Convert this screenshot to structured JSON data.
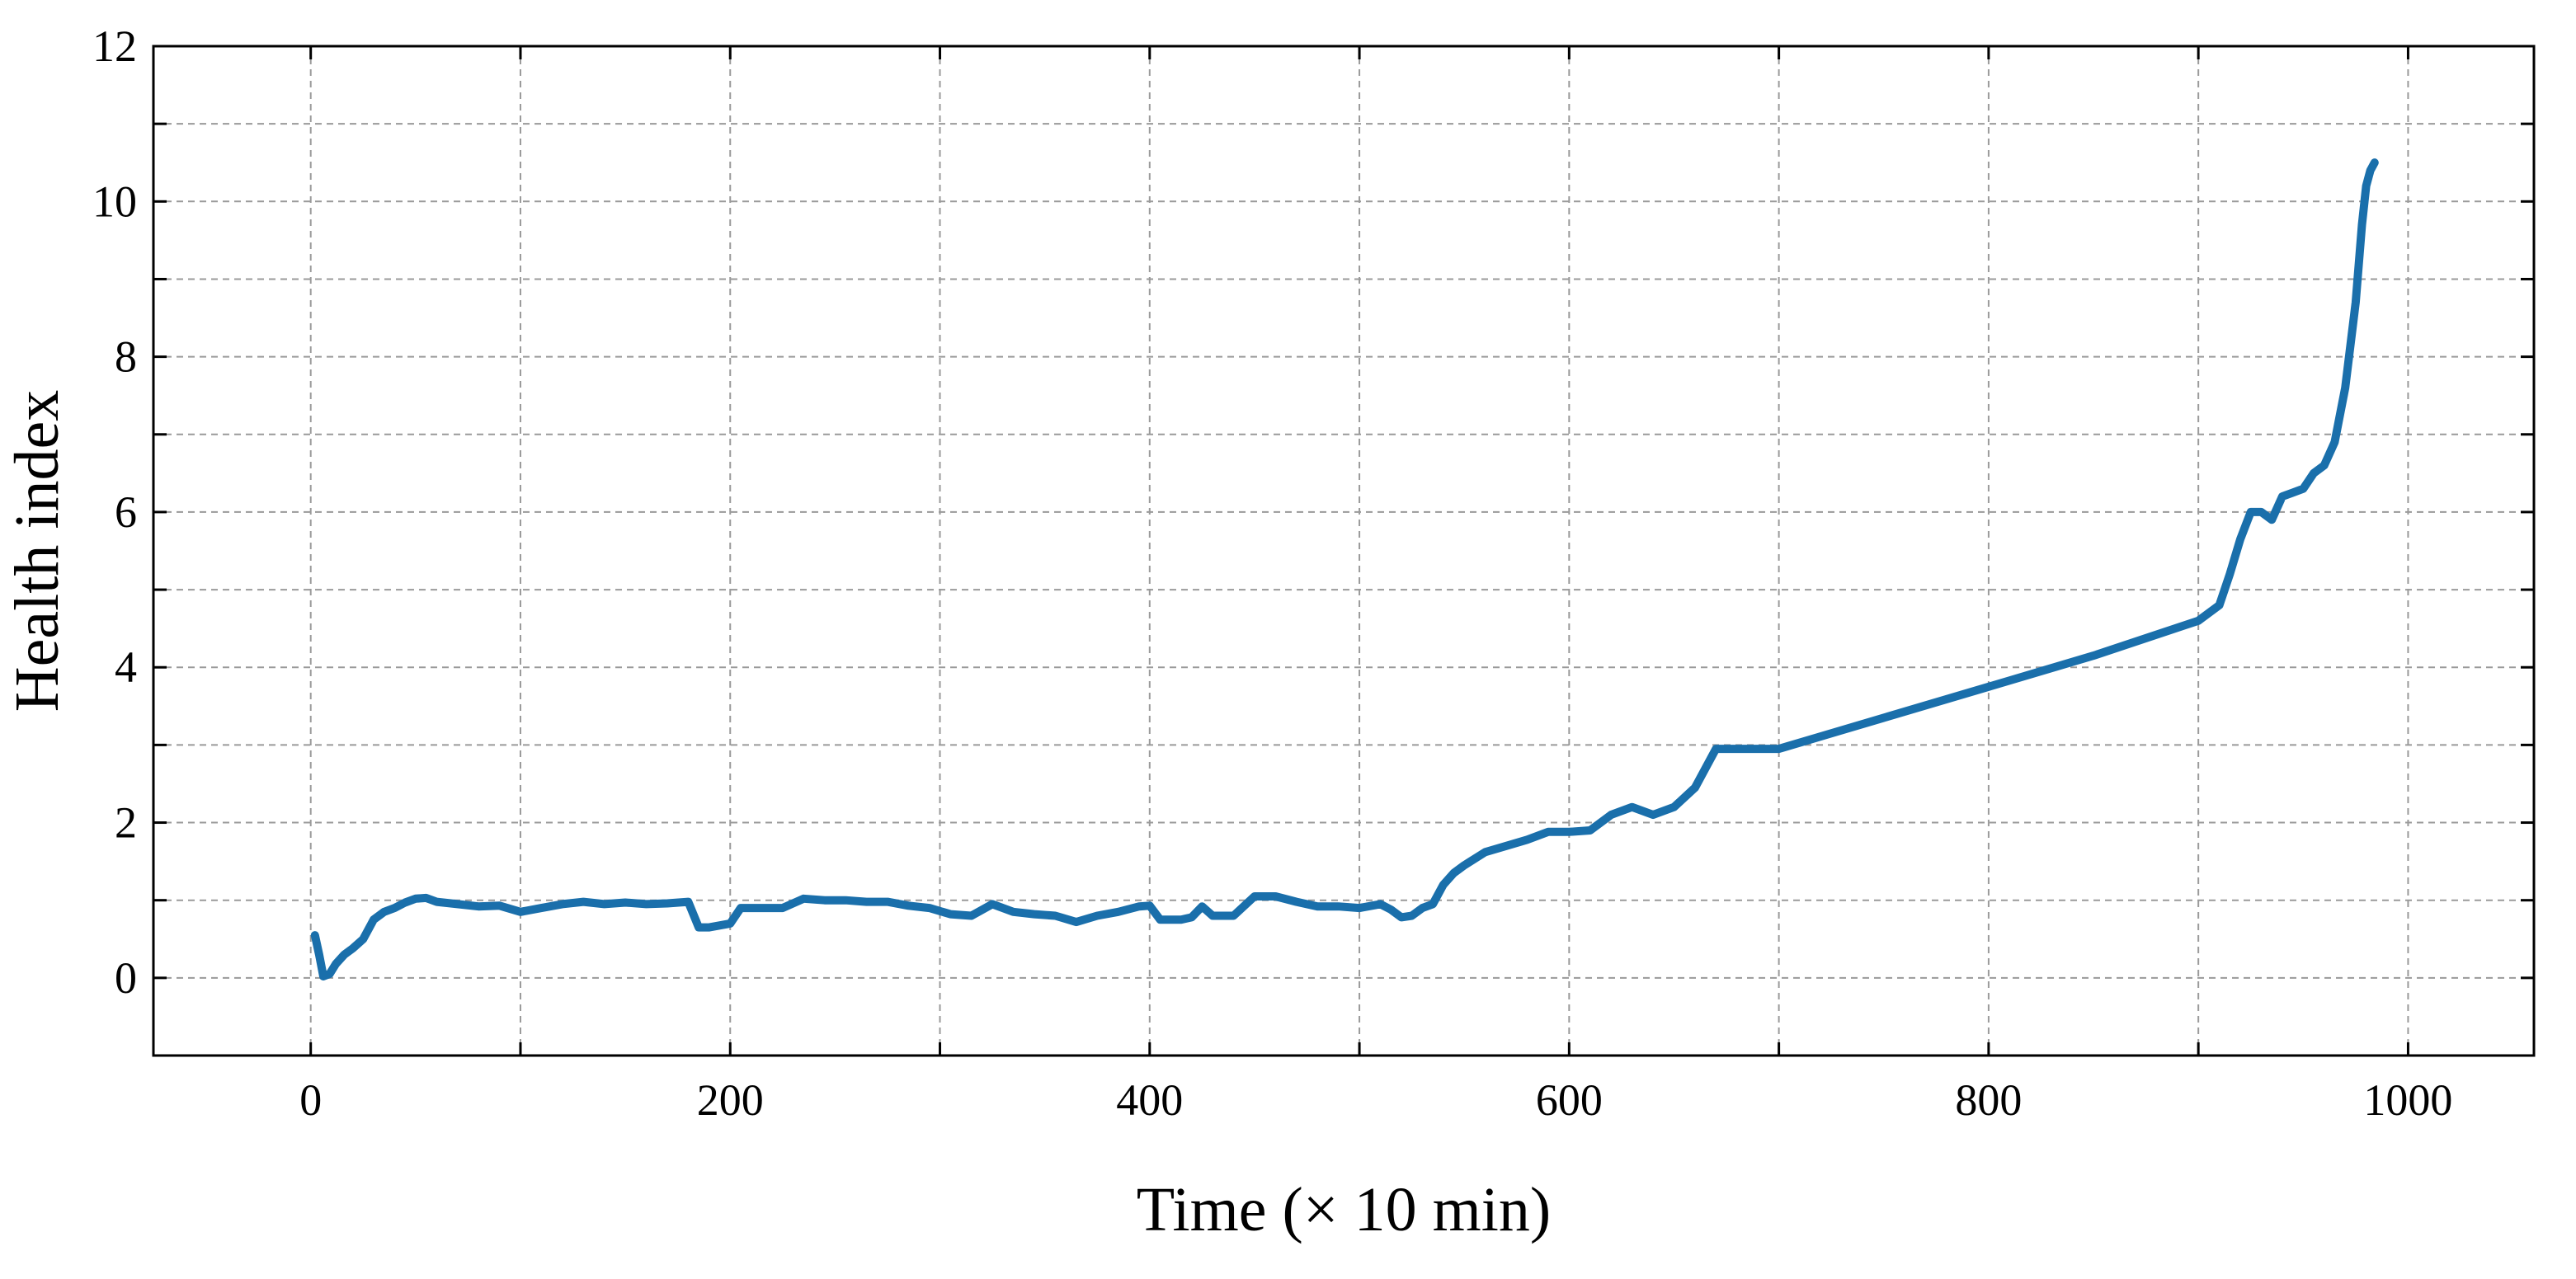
{
  "chart_data": {
    "type": "line",
    "title": "",
    "xlabel": "Time (× 10 min)",
    "ylabel": "Health index",
    "xlim": [
      -75,
      1060
    ],
    "ylim": [
      -1,
      12
    ],
    "x_ticks": [
      0,
      200,
      400,
      600,
      800,
      1000
    ],
    "x_tick_labels": [
      "0",
      "200",
      "400",
      "600",
      "800",
      "1000"
    ],
    "x_minor_ticks": [
      100,
      300,
      500,
      700,
      900
    ],
    "y_ticks": [
      0,
      2,
      4,
      6,
      8,
      10,
      12
    ],
    "y_tick_labels": [
      "0",
      "2",
      "4",
      "6",
      "8",
      "10",
      "12"
    ],
    "y_minor_ticks": [
      1,
      3,
      5,
      7,
      9,
      11
    ],
    "grid": true,
    "legend": "none",
    "series": [
      {
        "color": "#1a6fab",
        "x": [
          2,
          4,
          6,
          9,
          12,
          16,
          20,
          25,
          30,
          35,
          40,
          45,
          50,
          55,
          60,
          70,
          80,
          90,
          100,
          110,
          120,
          130,
          140,
          150,
          160,
          170,
          180,
          185,
          190,
          200,
          205,
          215,
          225,
          235,
          245,
          255,
          265,
          275,
          285,
          295,
          305,
          315,
          325,
          335,
          345,
          355,
          365,
          375,
          385,
          395,
          400,
          405,
          410,
          415,
          420,
          425,
          430,
          435,
          440,
          450,
          460,
          470,
          480,
          490,
          500,
          510,
          515,
          520,
          525,
          530,
          535,
          540,
          545,
          550,
          560,
          570,
          580,
          590,
          600,
          610,
          620,
          630,
          640,
          650,
          660,
          670,
          680,
          690,
          700,
          750,
          800,
          850,
          900,
          910,
          915,
          920,
          925,
          930,
          935,
          940,
          945,
          950,
          955,
          960,
          965,
          970,
          975,
          978,
          980,
          982,
          984
        ],
        "y": [
          0.55,
          0.3,
          0.02,
          0.05,
          0.18,
          0.3,
          0.38,
          0.5,
          0.75,
          0.85,
          0.9,
          0.97,
          1.02,
          1.03,
          0.98,
          0.95,
          0.92,
          0.93,
          0.85,
          0.9,
          0.95,
          0.98,
          0.95,
          0.97,
          0.95,
          0.96,
          0.98,
          0.65,
          0.65,
          0.7,
          0.9,
          0.9,
          0.9,
          1.02,
          1.0,
          1.0,
          0.98,
          0.98,
          0.93,
          0.9,
          0.82,
          0.8,
          0.95,
          0.85,
          0.82,
          0.8,
          0.72,
          0.8,
          0.85,
          0.92,
          0.93,
          0.75,
          0.75,
          0.75,
          0.78,
          0.92,
          0.8,
          0.8,
          0.8,
          1.05,
          1.05,
          0.98,
          0.92,
          0.92,
          0.9,
          0.95,
          0.88,
          0.78,
          0.8,
          0.9,
          0.95,
          1.2,
          1.35,
          1.45,
          1.62,
          1.7,
          1.78,
          1.88,
          1.88,
          1.9,
          2.1,
          2.2,
          2.1,
          2.2,
          2.45,
          2.95,
          2.95,
          2.95,
          2.95,
          3.35,
          3.75,
          4.15,
          4.6,
          4.8,
          5.2,
          5.65,
          6.0,
          6.0,
          5.9,
          6.2,
          6.25,
          6.3,
          6.5,
          6.6,
          6.9,
          7.6,
          8.7,
          9.7,
          10.2,
          10.4,
          10.5
        ]
      }
    ]
  }
}
